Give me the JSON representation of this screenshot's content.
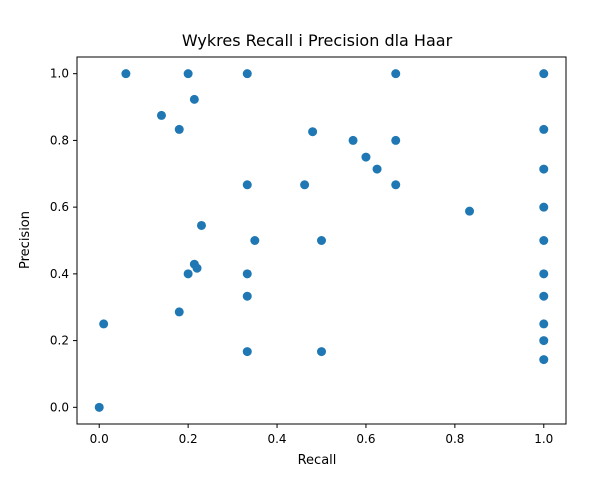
{
  "chart_data": {
    "type": "scatter",
    "title": "Wykres Recall i Precision dla Haar",
    "xlabel": "Recall",
    "ylabel": "Precision",
    "xlim": [
      -0.05,
      1.05
    ],
    "ylim": [
      -0.05,
      1.05
    ],
    "xticks": [
      "0.0",
      "0.2",
      "0.4",
      "0.6",
      "0.8",
      "1.0"
    ],
    "yticks": [
      "0.0",
      "0.2",
      "0.4",
      "0.6",
      "0.8",
      "1.0"
    ],
    "grid": false,
    "marker_color": "#1f77b4",
    "points": [
      [
        0.0,
        0.0
      ],
      [
        0.01,
        0.25
      ],
      [
        0.06,
        1.0
      ],
      [
        0.14,
        0.875
      ],
      [
        0.18,
        0.833
      ],
      [
        0.18,
        0.286
      ],
      [
        0.2,
        1.0
      ],
      [
        0.2,
        0.4
      ],
      [
        0.214,
        0.923
      ],
      [
        0.214,
        0.429
      ],
      [
        0.22,
        0.417
      ],
      [
        0.23,
        0.545
      ],
      [
        0.333,
        1.0
      ],
      [
        0.333,
        0.667
      ],
      [
        0.333,
        0.4
      ],
      [
        0.333,
        0.333
      ],
      [
        0.333,
        0.167
      ],
      [
        0.35,
        0.5
      ],
      [
        0.462,
        0.667
      ],
      [
        0.48,
        0.826
      ],
      [
        0.5,
        0.5
      ],
      [
        0.5,
        0.167
      ],
      [
        0.571,
        0.8
      ],
      [
        0.6,
        0.75
      ],
      [
        0.625,
        0.714
      ],
      [
        0.667,
        1.0
      ],
      [
        0.667,
        0.8
      ],
      [
        0.667,
        0.667
      ],
      [
        0.833,
        0.588
      ],
      [
        1.0,
        1.0
      ],
      [
        1.0,
        0.833
      ],
      [
        1.0,
        0.714
      ],
      [
        1.0,
        0.6
      ],
      [
        1.0,
        0.5
      ],
      [
        1.0,
        0.4
      ],
      [
        1.0,
        0.333
      ],
      [
        1.0,
        0.25
      ],
      [
        1.0,
        0.2
      ],
      [
        1.0,
        0.143
      ]
    ]
  }
}
